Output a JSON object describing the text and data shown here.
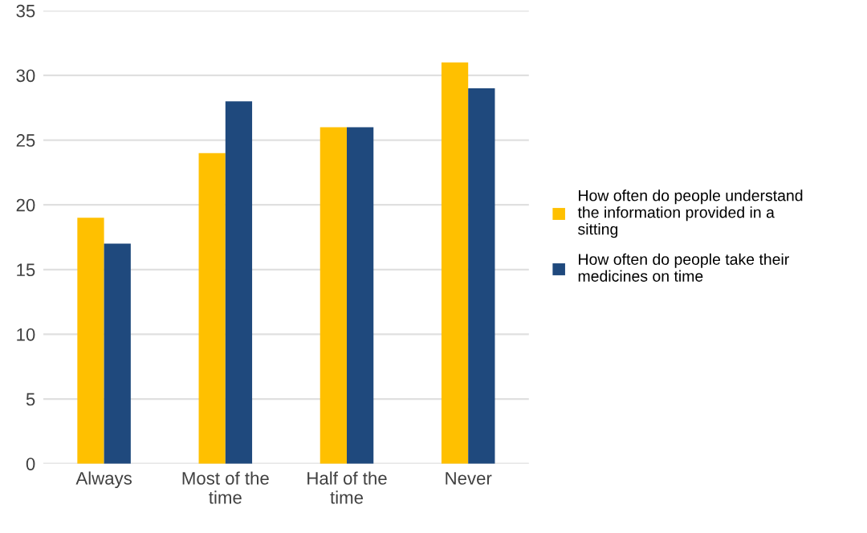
{
  "chart_data": {
    "type": "bar",
    "categories": [
      "Always",
      "Most of the\ntime",
      "Half of the\ntime",
      "Never"
    ],
    "series": [
      {
        "name": "How often do people understand\nthe information provided in a\nsitting",
        "color": "#ffc000",
        "values": [
          19,
          24,
          26,
          31
        ]
      },
      {
        "name": "How often do people take their\nmedicines on time",
        "color": "#1f497d",
        "values": [
          17,
          28,
          26,
          29
        ]
      }
    ],
    "ylim": [
      0,
      35
    ],
    "yticks": [
      0,
      5,
      10,
      15,
      20,
      25,
      30,
      35
    ],
    "grid": "y",
    "legend": "right"
  }
}
